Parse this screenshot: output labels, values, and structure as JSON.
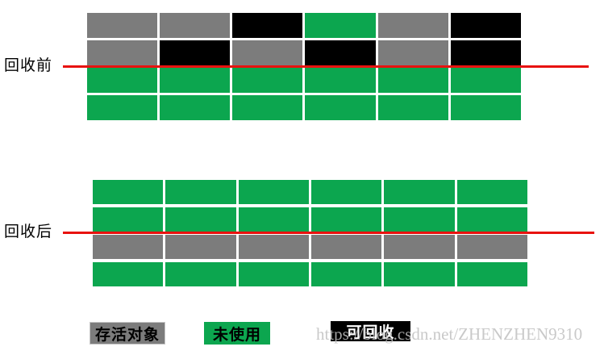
{
  "labels": {
    "before": "回收前",
    "after": "回收后"
  },
  "colors": {
    "live": "#7C7C7C",
    "unused": "#0CA64F",
    "collectible": "#000000",
    "line": "#E8120F"
  },
  "before_grid": {
    "rows": [
      [
        "live",
        "live",
        "collectible",
        "unused",
        "live",
        "collectible"
      ],
      [
        "live",
        "collectible",
        "live",
        "collectible",
        "live",
        "collectible"
      ],
      [
        "unused",
        "unused",
        "unused",
        "unused",
        "unused",
        "unused"
      ],
      [
        "unused",
        "unused",
        "unused",
        "unused",
        "unused",
        "unused"
      ]
    ]
  },
  "after_grid": {
    "rows": [
      [
        "unused",
        "unused",
        "unused",
        "unused",
        "unused",
        "unused"
      ],
      [
        "unused",
        "unused",
        "unused",
        "unused",
        "unused",
        "unused"
      ],
      [
        "live",
        "live",
        "live",
        "live",
        "live",
        "live"
      ],
      [
        "unused",
        "unused",
        "unused",
        "unused",
        "unused",
        "unused"
      ]
    ]
  },
  "legend": [
    {
      "label": "存活对象",
      "type": "live"
    },
    {
      "label": "未使用",
      "type": "unused"
    },
    {
      "label": "可回收",
      "type": "collectible"
    }
  ],
  "watermark": "https://blog.csdn.net/ZHENZHEN9310"
}
